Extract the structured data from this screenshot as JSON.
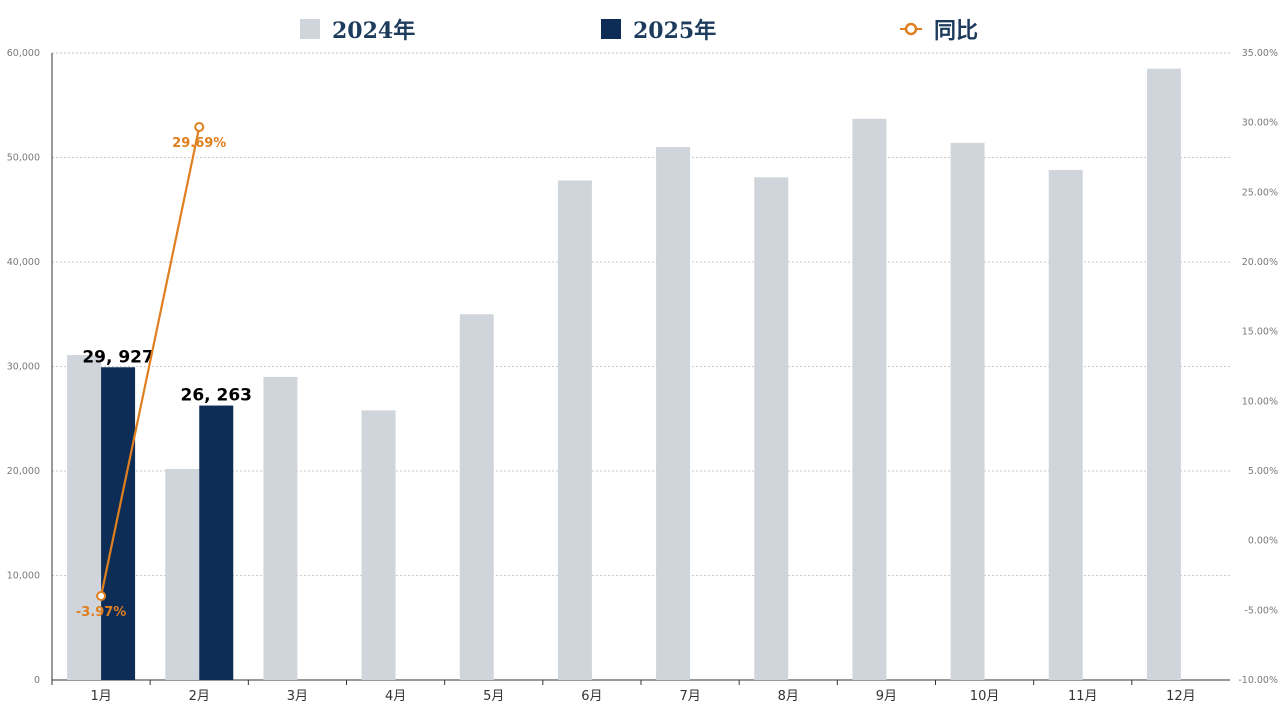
{
  "chart_data": {
    "type": "bar",
    "categories": [
      "1月",
      "2月",
      "3月",
      "4月",
      "5月",
      "6月",
      "7月",
      "8月",
      "9月",
      "10月",
      "11月",
      "12月"
    ],
    "series": [
      {
        "name": "2024年",
        "type": "bar",
        "axis": "left",
        "color": "#d0d5dc",
        "values": [
          31100,
          20200,
          29000,
          25800,
          35000,
          47800,
          51000,
          48100,
          53700,
          51400,
          48800,
          58500
        ]
      },
      {
        "name": "2025年",
        "type": "bar",
        "axis": "left",
        "color": "#0d2d57",
        "values": [
          29927,
          26263,
          null,
          null,
          null,
          null,
          null,
          null,
          null,
          null,
          null,
          null
        ],
        "data_labels": [
          "29, 927",
          "26, 263"
        ]
      },
      {
        "name": "同比",
        "type": "line",
        "axis": "right",
        "color": "#e07f20",
        "values": [
          -3.97,
          29.69,
          null,
          null,
          null,
          null,
          null,
          null,
          null,
          null,
          null,
          null
        ],
        "data_labels": [
          "-3.97%",
          "29.69%"
        ]
      }
    ],
    "y_left": {
      "range": [
        0,
        60000
      ],
      "ticks": [
        "0",
        "10,000",
        "20,000",
        "30,000",
        "40,000",
        "50,000",
        "60,000"
      ]
    },
    "y_right": {
      "range": [
        -10,
        35
      ],
      "ticks": [
        "-10.00%",
        "-5.00%",
        "0.00%",
        "5.00%",
        "10.00%",
        "15.00%",
        "20.00%",
        "25.00%",
        "30.00%",
        "35.00%"
      ]
    },
    "grid": true,
    "legend_position": "top-center"
  }
}
